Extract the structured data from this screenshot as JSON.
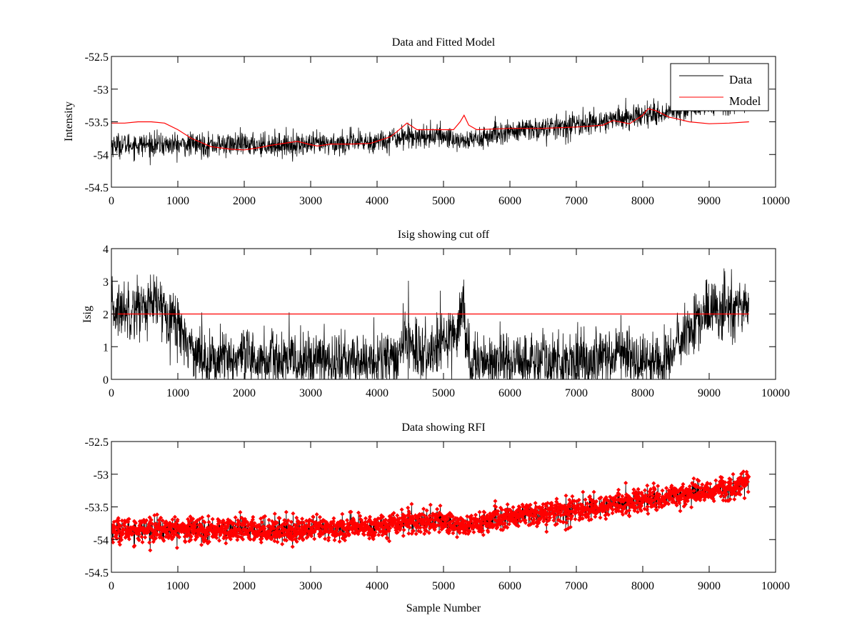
{
  "chart_data": [
    {
      "type": "line",
      "title": "Data and Fitted Model",
      "xlabel": "",
      "ylabel": "Intensity",
      "xlim": [
        0,
        10000
      ],
      "ylim": [
        -54.5,
        -52.5
      ],
      "xticks": [
        "0",
        "1000",
        "2000",
        "3000",
        "4000",
        "5000",
        "6000",
        "7000",
        "8000",
        "9000",
        "10000"
      ],
      "xtick_values": [
        0,
        1000,
        2000,
        3000,
        4000,
        5000,
        6000,
        7000,
        8000,
        9000,
        10000
      ],
      "yticks": [
        "-52.5",
        "-53",
        "-53.5",
        "-54",
        "-54.5"
      ],
      "ytick_values": [
        -52.5,
        -53,
        -53.5,
        -54,
        -54.5
      ],
      "legend": {
        "placement": "top-right",
        "entries": [
          "Data",
          "Model"
        ]
      },
      "series": [
        {
          "name": "Data",
          "color": "#000000",
          "n_samples": 9600,
          "trend_x": [
            0,
            1000,
            2000,
            3000,
            4000,
            4400,
            5000,
            5300,
            6000,
            7000,
            8000,
            9000,
            9600
          ],
          "trend_y": [
            -53.85,
            -53.85,
            -53.85,
            -53.85,
            -53.8,
            -53.72,
            -53.72,
            -53.8,
            -53.65,
            -53.55,
            -53.4,
            -53.25,
            -53.15
          ],
          "noise_sd": 0.09
        },
        {
          "name": "Model",
          "color": "#ff0000",
          "x": [
            0,
            200,
            400,
            600,
            800,
            1000,
            1200,
            1500,
            1800,
            2000,
            2200,
            2400,
            2800,
            3000,
            3100,
            3300,
            3600,
            3900,
            4200,
            4300,
            4450,
            4600,
            4900,
            5150,
            5250,
            5310,
            5380,
            5500,
            6000,
            6500,
            7000,
            7400,
            7550,
            7800,
            8000,
            8080,
            8200,
            8400,
            8500,
            8700,
            9000,
            9300,
            9600
          ],
          "y": [
            -53.52,
            -53.52,
            -53.5,
            -53.5,
            -53.52,
            -53.62,
            -53.75,
            -53.88,
            -53.92,
            -53.93,
            -53.9,
            -53.86,
            -53.8,
            -53.85,
            -53.87,
            -53.84,
            -53.84,
            -53.83,
            -53.73,
            -53.65,
            -53.52,
            -53.62,
            -53.62,
            -53.62,
            -53.5,
            -53.4,
            -53.55,
            -53.62,
            -53.6,
            -53.6,
            -53.58,
            -53.55,
            -53.48,
            -53.53,
            -53.4,
            -53.3,
            -53.33,
            -53.43,
            -53.45,
            -53.5,
            -53.53,
            -53.52,
            -53.5
          ]
        }
      ]
    },
    {
      "type": "line",
      "title": "Isig showing cut off",
      "xlabel": "",
      "ylabel": "Isig",
      "xlim": [
        0,
        10000
      ],
      "ylim": [
        0,
        4
      ],
      "xticks": [
        "0",
        "1000",
        "2000",
        "3000",
        "4000",
        "5000",
        "6000",
        "7000",
        "8000",
        "9000",
        "10000"
      ],
      "xtick_values": [
        0,
        1000,
        2000,
        3000,
        4000,
        5000,
        6000,
        7000,
        8000,
        9000,
        10000
      ],
      "yticks": [
        "0",
        "1",
        "2",
        "3",
        "4"
      ],
      "ytick_values": [
        0,
        1,
        2,
        3,
        4
      ],
      "series": [
        {
          "name": "Isig",
          "color": "#000000",
          "n_samples": 9600,
          "trend_x": [
            0,
            700,
            900,
            1200,
            1400,
            4000,
            4300,
            4450,
            4600,
            4800,
            5200,
            5300,
            5380,
            5450,
            6000,
            7000,
            7800,
            7900,
            8000,
            8300,
            8500,
            8800,
            9000,
            9600
          ],
          "trend_y": [
            2.1,
            2.3,
            2.0,
            1.0,
            0.6,
            0.55,
            0.6,
            1.4,
            0.8,
            0.7,
            1.6,
            2.2,
            0.6,
            0.55,
            0.55,
            0.55,
            0.9,
            0.55,
            0.5,
            0.55,
            1.0,
            1.7,
            2.1,
            2.2
          ],
          "noise_sd": 0.45
        },
        {
          "name": "Cut off",
          "color": "#ff0000",
          "x": [
            0,
            9600
          ],
          "y": [
            2,
            2
          ]
        }
      ]
    },
    {
      "type": "scatter",
      "title": "Data showing RFI",
      "xlabel": "Sample Number",
      "ylabel": "",
      "xlim": [
        0,
        10000
      ],
      "ylim": [
        -54.5,
        -52.5
      ],
      "xticks": [
        "0",
        "1000",
        "2000",
        "3000",
        "4000",
        "5000",
        "6000",
        "7000",
        "8000",
        "9000",
        "10000"
      ],
      "xtick_values": [
        0,
        1000,
        2000,
        3000,
        4000,
        5000,
        6000,
        7000,
        8000,
        9000,
        10000
      ],
      "yticks": [
        "-52.5",
        "-53",
        "-53.5",
        "-54",
        "-54.5"
      ],
      "ytick_values": [
        -52.5,
        -53,
        -53.5,
        -54,
        -54.5
      ],
      "series": [
        {
          "name": "Data",
          "color": "#000000",
          "marker_color": "#ff0000",
          "n_samples": 9600,
          "trend_x": [
            0,
            1000,
            2000,
            3000,
            4000,
            4400,
            5000,
            5300,
            6000,
            7000,
            8000,
            9000,
            9600
          ],
          "trend_y": [
            -53.85,
            -53.85,
            -53.85,
            -53.85,
            -53.8,
            -53.72,
            -53.72,
            -53.8,
            -53.65,
            -53.55,
            -53.4,
            -53.25,
            -53.15
          ],
          "noise_sd": 0.09
        }
      ]
    }
  ]
}
